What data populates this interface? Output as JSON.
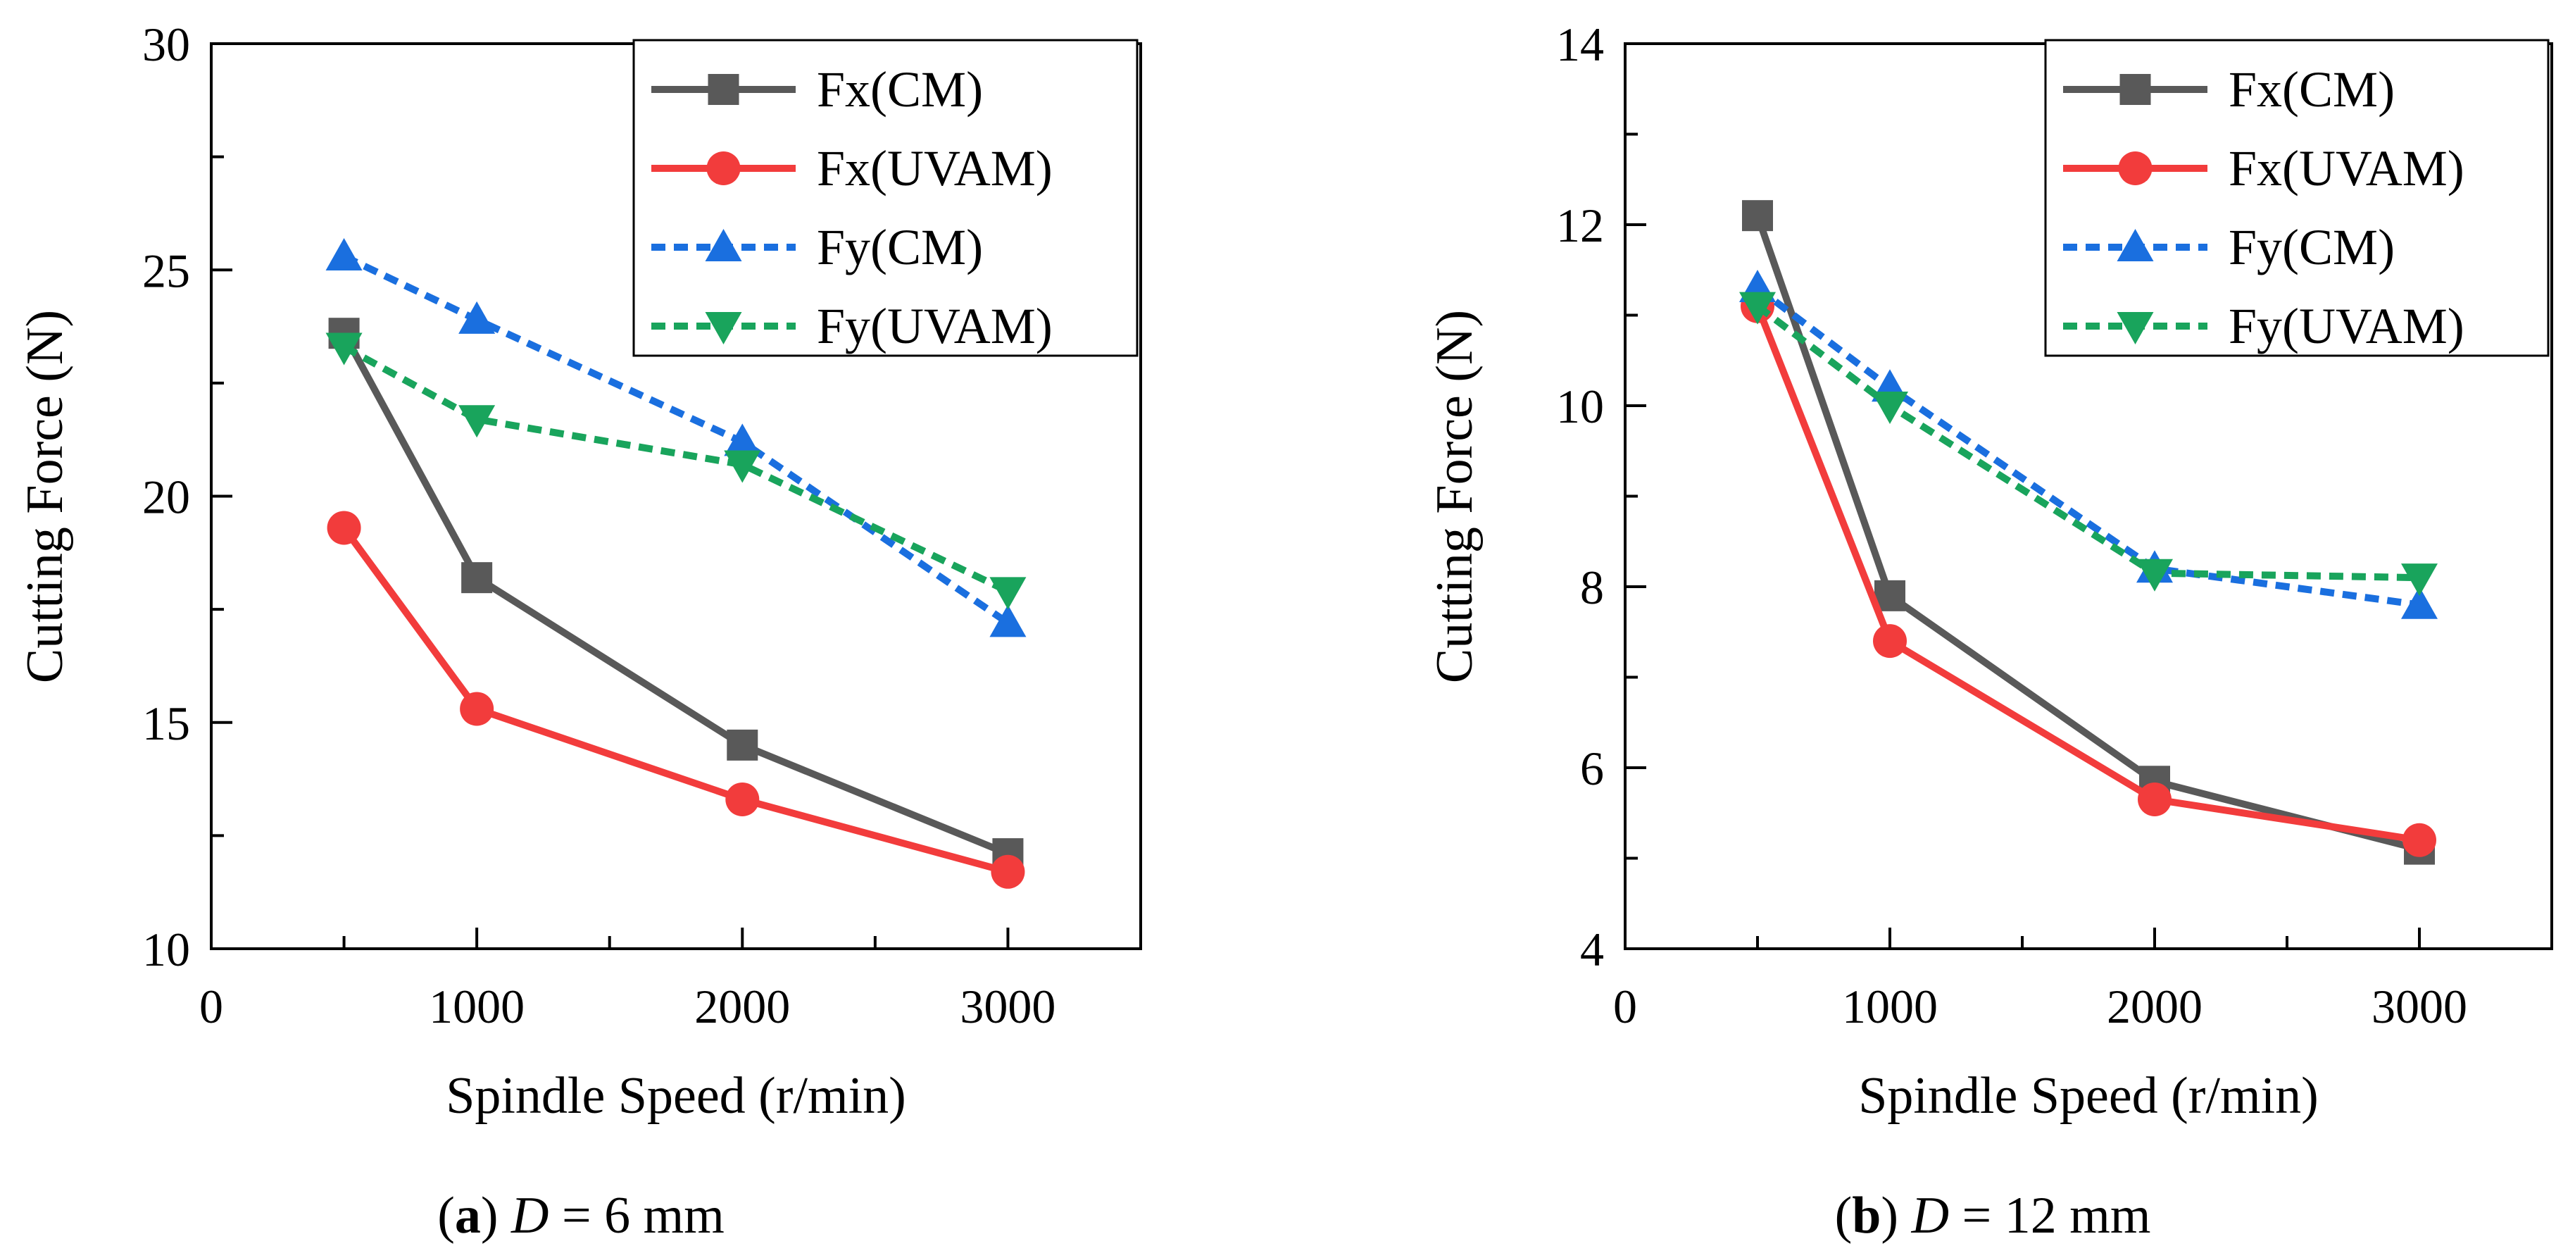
{
  "chart_data": [
    {
      "type": "line",
      "panel": "a",
      "caption": {
        "letter": "a",
        "variable": "D",
        "rest": " = 6 mm"
      },
      "xlabel": "Spindle Speed (r/min)",
      "ylabel": "Cutting Force (N)",
      "xlim": [
        0,
        3500
      ],
      "ylim": [
        10,
        30
      ],
      "xticks": [
        0,
        1000,
        2000,
        3000
      ],
      "yticks": [
        10,
        15,
        20,
        25,
        30
      ],
      "x": [
        500,
        1000,
        2000,
        3000
      ],
      "series": [
        {
          "name": "Fx(CM)",
          "values": [
            23.6,
            18.2,
            14.5,
            12.1
          ],
          "color": "#595959",
          "dashed": false,
          "marker": "square"
        },
        {
          "name": "Fx(UVAM)",
          "values": [
            19.3,
            15.3,
            13.3,
            11.7
          ],
          "color": "#f23c3c",
          "dashed": false,
          "marker": "circle"
        },
        {
          "name": "Fy(CM)",
          "values": [
            25.3,
            23.9,
            21.2,
            17.2
          ],
          "color": "#1a6fdf",
          "dashed": true,
          "marker": "triangle-up"
        },
        {
          "name": "Fy(UVAM)",
          "values": [
            23.3,
            21.7,
            20.7,
            17.9
          ],
          "color": "#19a45c",
          "dashed": true,
          "marker": "triangle-down"
        }
      ]
    },
    {
      "type": "line",
      "panel": "b",
      "caption": {
        "letter": "b",
        "variable": "D",
        "rest": " = 12 mm"
      },
      "xlabel": "Spindle Speed (r/min)",
      "ylabel": "Cutting Force (N)",
      "xlim": [
        0,
        3500
      ],
      "ylim": [
        4,
        14
      ],
      "xticks": [
        0,
        1000,
        2000,
        3000
      ],
      "yticks": [
        4,
        6,
        8,
        10,
        12,
        14
      ],
      "x": [
        500,
        1000,
        2000,
        3000
      ],
      "series": [
        {
          "name": "Fx(CM)",
          "values": [
            12.1,
            7.9,
            5.85,
            5.1
          ],
          "color": "#595959",
          "dashed": false,
          "marker": "square"
        },
        {
          "name": "Fx(UVAM)",
          "values": [
            11.1,
            7.4,
            5.65,
            5.2
          ],
          "color": "#f23c3c",
          "dashed": false,
          "marker": "circle"
        },
        {
          "name": "Fy(CM)",
          "values": [
            11.3,
            10.2,
            8.2,
            7.8
          ],
          "color": "#1a6fdf",
          "dashed": true,
          "marker": "triangle-up"
        },
        {
          "name": "Fy(UVAM)",
          "values": [
            11.1,
            10.0,
            8.15,
            8.1
          ],
          "color": "#19a45c",
          "dashed": true,
          "marker": "triangle-down"
        }
      ]
    }
  ]
}
